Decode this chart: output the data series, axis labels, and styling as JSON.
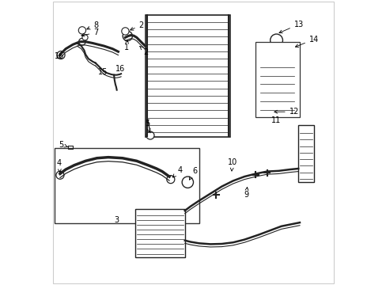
{
  "background_color": "#ffffff",
  "fig_width": 4.89,
  "fig_height": 3.6,
  "dpi": 100,
  "lc": "#222222",
  "lw_main": 2.0,
  "lw_thin": 0.8,
  "lw_med": 1.5,
  "lw_thick": 1.2,
  "border_color": "#aaaaaa",
  "label_fontsize": 7
}
